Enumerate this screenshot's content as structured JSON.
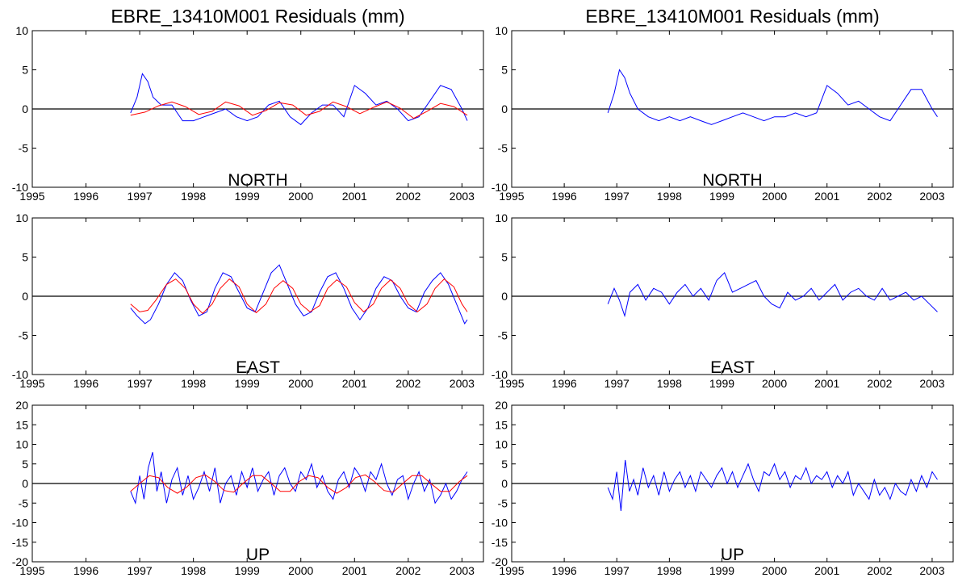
{
  "colors": {
    "residual": "#0000ff",
    "seasonal_fit": "#ff0000",
    "zero_line": "#000000"
  },
  "chart_data": [
    {
      "type": "line",
      "panel": "left",
      "title": "EBRE_13410M001 Residuals (mm)",
      "component": "NORTH",
      "xlim": [
        1995,
        2003.4
      ],
      "ylim": [
        -10,
        10
      ],
      "xticks": [
        "1995",
        "1996",
        "1997",
        "1998",
        "1999",
        "2000",
        "2001",
        "2002",
        "2003"
      ],
      "yticks": [
        "10",
        "5",
        "0",
        "-5",
        "-10"
      ],
      "series": [
        {
          "role": "residual",
          "x": [
            1996.83,
            1996.95,
            1997.05,
            1997.15,
            1997.25,
            1997.4,
            1997.6,
            1997.8,
            1998.0,
            1998.2,
            1998.4,
            1998.6,
            1998.8,
            1999.0,
            1999.2,
            1999.4,
            1999.6,
            1999.8,
            2000.0,
            2000.2,
            2000.4,
            2000.6,
            2000.8,
            2001.0,
            2001.2,
            2001.4,
            2001.6,
            2001.8,
            2002.0,
            2002.2,
            2002.4,
            2002.6,
            2002.8,
            2003.0,
            2003.1
          ],
          "y": [
            -0.5,
            1.5,
            4.5,
            3.5,
            1.5,
            0.5,
            0.5,
            -1.5,
            -1.5,
            -1,
            -0.5,
            0,
            -1,
            -1.5,
            -1,
            0.5,
            1,
            -1,
            -2,
            -0.5,
            0.5,
            0.5,
            -1,
            3,
            2,
            0.5,
            1,
            0,
            -1.5,
            -1,
            1,
            3,
            2.5,
            0,
            -1.5
          ]
        },
        {
          "role": "seasonal_fit",
          "x": [
            1996.83,
            1997.1,
            1997.35,
            1997.6,
            1997.85,
            1998.1,
            1998.35,
            1998.6,
            1998.85,
            1999.1,
            1999.35,
            1999.6,
            1999.85,
            2000.1,
            2000.35,
            2000.6,
            2000.85,
            2001.1,
            2001.35,
            2001.6,
            2001.85,
            2002.1,
            2002.35,
            2002.6,
            2002.85,
            2003.1
          ],
          "y": [
            -0.8,
            -0.4,
            0.4,
            0.9,
            0.3,
            -0.7,
            -0.3,
            0.9,
            0.4,
            -0.8,
            -0.2,
            0.8,
            0.5,
            -0.8,
            -0.3,
            0.9,
            0.3,
            -0.6,
            0.2,
            0.9,
            0.1,
            -1.2,
            -0.3,
            0.7,
            0.3,
            -0.8
          ]
        }
      ]
    },
    {
      "type": "line",
      "panel": "right",
      "title": "EBRE_13410M001 Residuals (mm)",
      "component": "NORTH",
      "xlim": [
        1995,
        2003.4
      ],
      "ylim": [
        -10,
        10
      ],
      "xticks": [
        "1995",
        "1996",
        "1997",
        "1998",
        "1999",
        "2000",
        "2001",
        "2002",
        "2003"
      ],
      "yticks": [
        "10",
        "5",
        "0",
        "-5",
        "-10"
      ],
      "series": [
        {
          "role": "residual",
          "x": [
            1996.83,
            1996.95,
            1997.05,
            1997.15,
            1997.25,
            1997.4,
            1997.6,
            1997.8,
            1998.0,
            1998.2,
            1998.4,
            1998.6,
            1998.8,
            1999.0,
            1999.2,
            1999.4,
            1999.6,
            1999.8,
            2000.0,
            2000.2,
            2000.4,
            2000.6,
            2000.8,
            2001.0,
            2001.2,
            2001.4,
            2001.6,
            2001.8,
            2002.0,
            2002.2,
            2002.4,
            2002.6,
            2002.8,
            2003.0,
            2003.1
          ],
          "y": [
            -0.5,
            2,
            5,
            4,
            2,
            0,
            -1,
            -1.5,
            -1,
            -1.5,
            -1,
            -1.5,
            -2,
            -1.5,
            -1,
            -0.5,
            -1,
            -1.5,
            -1,
            -1,
            -0.5,
            -1,
            -0.5,
            3,
            2,
            0.5,
            1,
            0,
            -1,
            -1.5,
            0.5,
            2.5,
            2.5,
            0,
            -1
          ]
        }
      ]
    },
    {
      "type": "line",
      "panel": "left",
      "component": "EAST",
      "xlim": [
        1995,
        2003.4
      ],
      "ylim": [
        -10,
        10
      ],
      "xticks": [
        "1995",
        "1996",
        "1997",
        "1998",
        "1999",
        "2000",
        "2001",
        "2002",
        "2003"
      ],
      "yticks": [
        "10",
        "5",
        "0",
        "-5",
        "-10"
      ],
      "series": [
        {
          "role": "residual",
          "x": [
            1996.83,
            1996.95,
            1997.1,
            1997.2,
            1997.35,
            1997.5,
            1997.65,
            1997.8,
            1997.95,
            1998.1,
            1998.25,
            1998.4,
            1998.55,
            1998.7,
            1998.85,
            1999.0,
            1999.15,
            1999.3,
            1999.45,
            1999.6,
            1999.75,
            1999.9,
            2000.05,
            2000.2,
            2000.35,
            2000.5,
            2000.65,
            2000.8,
            2000.95,
            2001.1,
            2001.25,
            2001.4,
            2001.55,
            2001.7,
            2001.85,
            2002.0,
            2002.15,
            2002.3,
            2002.45,
            2002.6,
            2002.75,
            2002.9,
            2003.05,
            2003.1
          ],
          "y": [
            -1.5,
            -2.5,
            -3.5,
            -3,
            -1,
            1.5,
            3,
            2,
            -0.5,
            -2.5,
            -2,
            1,
            3,
            2.5,
            0.5,
            -1.5,
            -2,
            0.5,
            3,
            4,
            1.5,
            -1,
            -2.5,
            -2,
            0.5,
            2.5,
            3,
            1,
            -1.5,
            -3,
            -1.5,
            1,
            2.5,
            2,
            0,
            -1.5,
            -2,
            0.5,
            2,
            3,
            1.5,
            -1,
            -3.5,
            -3
          ]
        },
        {
          "role": "seasonal_fit",
          "x": [
            1996.83,
            1997.0,
            1997.15,
            1997.3,
            1997.5,
            1997.67,
            1997.85,
            1998.0,
            1998.17,
            1998.35,
            1998.5,
            1998.67,
            1998.85,
            1999.0,
            1999.17,
            1999.35,
            1999.5,
            1999.67,
            1999.85,
            2000.0,
            2000.17,
            2000.35,
            2000.5,
            2000.67,
            2000.85,
            2001.0,
            2001.17,
            2001.35,
            2001.5,
            2001.67,
            2001.85,
            2002.0,
            2002.17,
            2002.35,
            2002.5,
            2002.67,
            2002.85,
            2003.0,
            2003.1
          ],
          "y": [
            -1,
            -2,
            -1.8,
            -0.5,
            1.5,
            2.2,
            1,
            -1,
            -2.2,
            -1,
            1,
            2.2,
            1.2,
            -1,
            -2.1,
            -1,
            1,
            2,
            1,
            -1,
            -2,
            -1.2,
            1,
            2.1,
            1.2,
            -0.8,
            -2,
            -1,
            1,
            2.1,
            1,
            -1,
            -2,
            -1,
            1,
            2.2,
            1.2,
            -1,
            -2
          ]
        }
      ]
    },
    {
      "type": "line",
      "panel": "right",
      "component": "EAST",
      "xlim": [
        1995,
        2003.4
      ],
      "ylim": [
        -10,
        10
      ],
      "xticks": [
        "1995",
        "1996",
        "1997",
        "1998",
        "1999",
        "2000",
        "2001",
        "2002",
        "2003"
      ],
      "yticks": [
        "10",
        "5",
        "0",
        "-5",
        "-10"
      ],
      "series": [
        {
          "role": "residual",
          "x": [
            1996.83,
            1996.95,
            1997.05,
            1997.15,
            1997.25,
            1997.4,
            1997.55,
            1997.7,
            1997.85,
            1998.0,
            1998.15,
            1998.3,
            1998.45,
            1998.6,
            1998.75,
            1998.9,
            1999.05,
            1999.2,
            1999.35,
            1999.5,
            1999.65,
            1999.8,
            1999.95,
            2000.1,
            2000.25,
            2000.4,
            2000.55,
            2000.7,
            2000.85,
            2001.0,
            2001.15,
            2001.3,
            2001.45,
            2001.6,
            2001.75,
            2001.9,
            2002.05,
            2002.2,
            2002.35,
            2002.5,
            2002.65,
            2002.8,
            2002.95,
            2003.1
          ],
          "y": [
            -1,
            1,
            -0.5,
            -2.5,
            0.5,
            1.5,
            -0.5,
            1,
            0.5,
            -1,
            0.5,
            1.5,
            0,
            1,
            -0.5,
            2,
            3,
            0.5,
            1,
            1.5,
            2,
            0,
            -1,
            -1.5,
            0.5,
            -0.5,
            0,
            1,
            -0.5,
            0.5,
            1.5,
            -0.5,
            0.5,
            1,
            0,
            -0.5,
            1,
            -0.5,
            0,
            0.5,
            -0.5,
            0,
            -1,
            -2
          ]
        }
      ]
    },
    {
      "type": "line",
      "panel": "left",
      "component": "UP",
      "xlim": [
        1995,
        2003.4
      ],
      "ylim": [
        -20,
        20
      ],
      "xticks": [
        "1995",
        "1996",
        "1997",
        "1998",
        "1999",
        "2000",
        "2001",
        "2002",
        "2003"
      ],
      "yticks": [
        "20",
        "15",
        "10",
        "5",
        "0",
        "-5",
        "-10",
        "-15",
        "-20"
      ],
      "series": [
        {
          "role": "residual",
          "x": [
            1996.83,
            1996.92,
            1997.0,
            1997.08,
            1997.16,
            1997.24,
            1997.32,
            1997.4,
            1997.5,
            1997.6,
            1997.7,
            1997.8,
            1997.9,
            1998.0,
            1998.1,
            1998.2,
            1998.3,
            1998.4,
            1998.5,
            1998.6,
            1998.7,
            1998.8,
            1998.9,
            1999.0,
            1999.1,
            1999.2,
            1999.3,
            1999.4,
            1999.5,
            1999.6,
            1999.7,
            1999.8,
            1999.9,
            2000.0,
            2000.1,
            2000.2,
            2000.3,
            2000.4,
            2000.5,
            2000.6,
            2000.7,
            2000.8,
            2000.9,
            2001.0,
            2001.1,
            2001.2,
            2001.3,
            2001.4,
            2001.5,
            2001.6,
            2001.7,
            2001.8,
            2001.9,
            2002.0,
            2002.1,
            2002.2,
            2002.3,
            2002.4,
            2002.5,
            2002.6,
            2002.7,
            2002.8,
            2002.9,
            2003.0,
            2003.1
          ],
          "y": [
            -2,
            -5,
            2,
            -4,
            4,
            8,
            -2,
            3,
            -5,
            1,
            4,
            -3,
            2,
            -4,
            -1,
            3,
            -2,
            4,
            -5,
            0,
            2,
            -3,
            3,
            -1,
            4,
            -2,
            1,
            3,
            -3,
            2,
            4,
            0,
            -2,
            3,
            1,
            5,
            -1,
            2,
            -2,
            -4,
            1,
            3,
            -1,
            4,
            2,
            -2,
            3,
            1,
            5,
            0,
            -3,
            1,
            2,
            -4,
            0,
            3,
            -2,
            1,
            -5,
            -3,
            0,
            -4,
            -2,
            1,
            3
          ]
        },
        {
          "role": "seasonal_fit",
          "x": [
            1996.83,
            1997.0,
            1997.18,
            1997.35,
            1997.52,
            1997.7,
            1997.87,
            1998.05,
            1998.22,
            1998.4,
            1998.57,
            1998.75,
            1998.92,
            1999.1,
            1999.27,
            1999.45,
            1999.62,
            1999.8,
            1999.97,
            2000.15,
            2000.32,
            2000.5,
            2000.67,
            2000.85,
            2001.02,
            2001.2,
            2001.37,
            2001.55,
            2001.72,
            2001.9,
            2002.07,
            2002.25,
            2002.42,
            2002.6,
            2002.77,
            2002.95,
            2003.1
          ],
          "y": [
            -2,
            0,
            2,
            1.5,
            -1,
            -2.5,
            -1,
            1.5,
            2.2,
            0.5,
            -1.8,
            -2.2,
            0,
            2,
            2,
            0,
            -2,
            -2,
            0.5,
            2,
            1.5,
            -1,
            -2.5,
            -1,
            1.5,
            2.2,
            0.5,
            -1.8,
            -2.2,
            0,
            2,
            2,
            0,
            -2,
            -2,
            0.5,
            2
          ]
        }
      ]
    },
    {
      "type": "line",
      "panel": "right",
      "component": "UP",
      "xlim": [
        1995,
        2003.4
      ],
      "ylim": [
        -20,
        20
      ],
      "xticks": [
        "1995",
        "1996",
        "1997",
        "1998",
        "1999",
        "2000",
        "2001",
        "2002",
        "2003"
      ],
      "yticks": [
        "20",
        "15",
        "10",
        "5",
        "0",
        "-5",
        "-10",
        "-15",
        "-20"
      ],
      "series": [
        {
          "role": "residual",
          "x": [
            1996.83,
            1996.92,
            1997.0,
            1997.08,
            1997.16,
            1997.24,
            1997.32,
            1997.4,
            1997.5,
            1997.6,
            1997.7,
            1997.8,
            1997.9,
            1998.0,
            1998.1,
            1998.2,
            1998.3,
            1998.4,
            1998.5,
            1998.6,
            1998.7,
            1998.8,
            1998.9,
            1999.0,
            1999.1,
            1999.2,
            1999.3,
            1999.4,
            1999.5,
            1999.6,
            1999.7,
            1999.8,
            1999.9,
            2000.0,
            2000.1,
            2000.2,
            2000.3,
            2000.4,
            2000.5,
            2000.6,
            2000.7,
            2000.8,
            2000.9,
            2001.0,
            2001.1,
            2001.2,
            2001.3,
            2001.4,
            2001.5,
            2001.6,
            2001.7,
            2001.8,
            2001.9,
            2002.0,
            2002.1,
            2002.2,
            2002.3,
            2002.4,
            2002.5,
            2002.6,
            2002.7,
            2002.8,
            2002.9,
            2003.0,
            2003.1
          ],
          "y": [
            -1,
            -4,
            3,
            -7,
            6,
            -2,
            1,
            -3,
            4,
            -1,
            2,
            -3,
            3,
            -2,
            1,
            3,
            -1,
            2,
            -2,
            3,
            1,
            -1,
            2,
            4,
            0,
            3,
            -1,
            2,
            5,
            1,
            -2,
            3,
            2,
            5,
            1,
            3,
            -1,
            2,
            1,
            4,
            0,
            2,
            1,
            3,
            -1,
            2,
            0,
            3,
            -3,
            0,
            -2,
            -4,
            1,
            -3,
            -1,
            -4,
            0,
            -2,
            -3,
            1,
            -2,
            2,
            -1,
            3,
            1
          ]
        }
      ]
    }
  ]
}
